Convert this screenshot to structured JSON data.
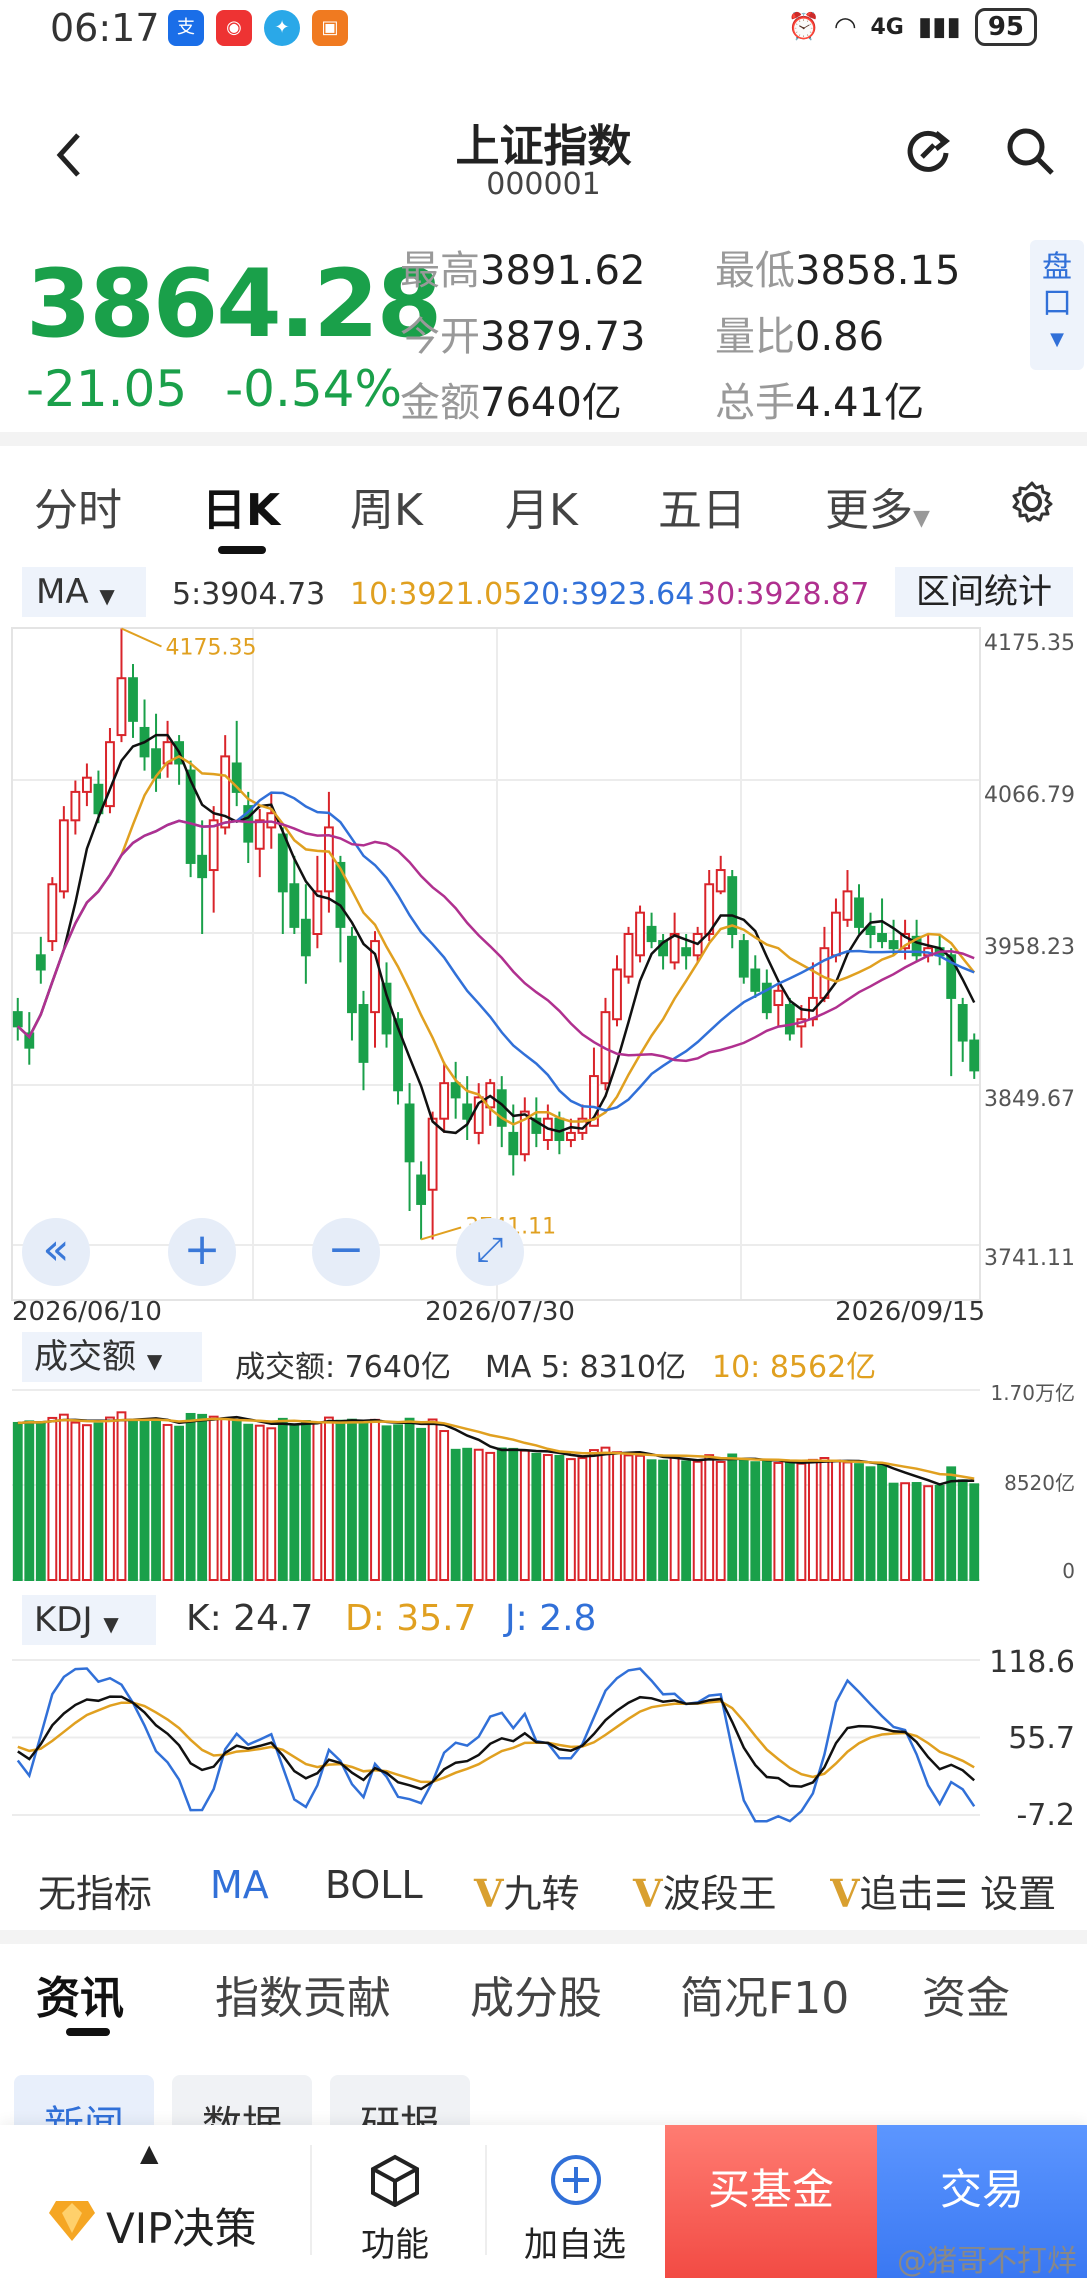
{
  "status": {
    "time": "06:17",
    "battery": "95",
    "network": "4G"
  },
  "header": {
    "title": "上证指数",
    "code": "000001"
  },
  "quote": {
    "price": "3864.28",
    "change": "-21.05",
    "change_pct": "-0.54%",
    "high_label": "最高",
    "high": "3891.62",
    "low_label": "最低",
    "low": "3858.15",
    "open_label": "今开",
    "open": "3879.73",
    "vol_ratio_label": "量比",
    "vol_ratio": "0.86",
    "amount_label": "金额",
    "amount": "7640亿",
    "turnover_label": "总手",
    "turnover": "4.41亿",
    "pankou": "盘口"
  },
  "tabs": [
    "分时",
    "日K",
    "周K",
    "月K",
    "五日",
    "更多"
  ],
  "ma_bar": {
    "button": "MA",
    "ma5": "5:3904.73",
    "ma10": "10:3921.05",
    "ma20": "20:3923.64",
    "ma30": "30:3928.87",
    "range_stat": "区间统计"
  },
  "colors": {
    "up": "#d9242a",
    "down": "#1aa04a",
    "ma5": "#111111",
    "ma10": "#e0a020",
    "ma20": "#3170d8",
    "ma30": "#b0308f"
  },
  "kline_axis": {
    "y_labels": [
      "4175.35",
      "4066.79",
      "3958.23",
      "3849.67",
      "3741.11"
    ],
    "x_labels": [
      "2026/06/10",
      "2026/07/30",
      "2026/09/15"
    ],
    "max_label": "4175.35",
    "min_label": "3741.11"
  },
  "volume_bar": {
    "button": "成交额",
    "amount": "成交额: 7640亿",
    "ma5": "MA 5: 8310亿",
    "ma10": "10: 8562亿",
    "y_labels": [
      "1.70万亿",
      "8520亿",
      "0"
    ]
  },
  "kdj_bar": {
    "button": "KDJ",
    "k": "K: 24.7",
    "d": "D: 35.7",
    "j": "J: 2.8",
    "y_labels": [
      "118.6",
      "55.7",
      "-7.2"
    ]
  },
  "indicator_row": {
    "none": "无指标",
    "ma": "MA",
    "boll": "BOLL",
    "v_mark": "V",
    "jiuzhuan": "九转",
    "boduan": "波段王",
    "zhui": "追击",
    "settings": "设置"
  },
  "info_tabs": [
    "资讯",
    "指数贡献",
    "成分股",
    "简况F10",
    "资金"
  ],
  "chips": [
    "新闻",
    "数据",
    "研报"
  ],
  "bottom": {
    "vip": "VIP决策",
    "func": "功能",
    "add": "加自选",
    "buy_fund": "买基金",
    "trade": "交易",
    "watermark": "@猪哥不打烊"
  },
  "chart_data": {
    "type": "candlestick",
    "period": "daily",
    "ylim": [
      3741.11,
      4175.35
    ],
    "candles": [
      [
        3905,
        3895,
        3915,
        3885
      ],
      [
        3890,
        3880,
        3905,
        3868
      ],
      [
        3945,
        3935,
        3958,
        3925
      ],
      [
        3955,
        3995,
        4000,
        3948
      ],
      [
        3990,
        4040,
        4050,
        3985
      ],
      [
        4040,
        4060,
        4068,
        4030
      ],
      [
        4060,
        4070,
        4080,
        4050
      ],
      [
        4065,
        4045,
        4075,
        4038
      ],
      [
        4050,
        4095,
        4105,
        4045
      ],
      [
        4100,
        4140,
        4175,
        4095
      ],
      [
        4140,
        4110,
        4150,
        4098
      ],
      [
        4105,
        4085,
        4125,
        4075
      ],
      [
        4090,
        4070,
        4115,
        4060
      ],
      [
        4080,
        4095,
        4110,
        4070
      ],
      [
        4095,
        4080,
        4100,
        4065
      ],
      [
        4075,
        4010,
        4082,
        4000
      ],
      [
        4015,
        4000,
        4040,
        3960
      ],
      [
        4005,
        4040,
        4050,
        3975
      ],
      [
        4035,
        4085,
        4100,
        4030
      ],
      [
        4080,
        4060,
        4110,
        4050
      ],
      [
        4050,
        4025,
        4060,
        4010
      ],
      [
        4020,
        4040,
        4048,
        4000
      ],
      [
        4035,
        4045,
        4060,
        4020
      ],
      [
        4030,
        3990,
        4035,
        3960
      ],
      [
        3995,
        3965,
        4015,
        3960
      ],
      [
        3970,
        3945,
        3995,
        3925
      ],
      [
        3960,
        3990,
        4015,
        3950
      ],
      [
        3990,
        4035,
        4060,
        3975
      ],
      [
        4010,
        3965,
        4015,
        3940
      ],
      [
        3958,
        3905,
        3965,
        3885
      ],
      [
        3910,
        3870,
        3920,
        3850
      ],
      [
        3905,
        3955,
        3962,
        3880
      ],
      [
        3925,
        3890,
        3940,
        3880
      ],
      [
        3900,
        3850,
        3905,
        3840
      ],
      [
        3840,
        3800,
        3855,
        3765
      ],
      [
        3790,
        3770,
        3800,
        3745
      ],
      [
        3780,
        3830,
        3835,
        3745
      ],
      [
        3830,
        3855,
        3870,
        3820
      ],
      [
        3855,
        3845,
        3870,
        3830
      ],
      [
        3840,
        3830,
        3860,
        3815
      ],
      [
        3820,
        3845,
        3855,
        3812
      ],
      [
        3838,
        3855,
        3858,
        3825
      ],
      [
        3850,
        3825,
        3860,
        3810
      ],
      [
        3820,
        3805,
        3840,
        3790
      ],
      [
        3805,
        3835,
        3845,
        3800
      ],
      [
        3830,
        3820,
        3845,
        3810
      ],
      [
        3815,
        3830,
        3840,
        3808
      ],
      [
        3830,
        3815,
        3835,
        3805
      ],
      [
        3815,
        3820,
        3830,
        3810
      ],
      [
        3820,
        3830,
        3840,
        3815
      ],
      [
        3825,
        3860,
        3880,
        3825
      ],
      [
        3855,
        3905,
        3915,
        3850
      ],
      [
        3900,
        3935,
        3945,
        3895
      ],
      [
        3930,
        3960,
        3965,
        3925
      ],
      [
        3945,
        3975,
        3980,
        3940
      ],
      [
        3965,
        3955,
        3975,
        3950
      ],
      [
        3955,
        3945,
        3960,
        3935
      ],
      [
        3940,
        3960,
        3975,
        3935
      ],
      [
        3950,
        3945,
        3960,
        3935
      ],
      [
        3945,
        3960,
        3965,
        3940
      ],
      [
        3960,
        3995,
        4005,
        3955
      ],
      [
        3990,
        4005,
        4015,
        3988
      ],
      [
        4000,
        3960,
        4005,
        3950
      ],
      [
        3955,
        3930,
        3960,
        3925
      ],
      [
        3935,
        3920,
        3945,
        3915
      ],
      [
        3925,
        3905,
        3935,
        3900
      ],
      [
        3910,
        3920,
        3925,
        3895
      ],
      [
        3910,
        3890,
        3915,
        3885
      ],
      [
        3895,
        3900,
        3910,
        3880
      ],
      [
        3900,
        3915,
        3940,
        3895
      ],
      [
        3915,
        3950,
        3965,
        3912
      ],
      [
        3945,
        3975,
        3985,
        3940
      ],
      [
        3970,
        3990,
        4005,
        3965
      ],
      [
        3985,
        3965,
        3995,
        3960
      ],
      [
        3965,
        3960,
        3975,
        3950
      ],
      [
        3960,
        3955,
        3985,
        3950
      ],
      [
        3955,
        3950,
        3970,
        3945
      ],
      [
        3950,
        3960,
        3970,
        3942
      ],
      [
        3958,
        3945,
        3970,
        3940
      ],
      [
        3945,
        3950,
        3960,
        3940
      ],
      [
        3950,
        3945,
        3960,
        3938
      ],
      [
        3945,
        3915,
        3950,
        3860
      ],
      [
        3910,
        3885,
        3915,
        3870
      ],
      [
        3885,
        3864,
        3890,
        3858
      ]
    ],
    "volume_ylim": [
      0,
      17000
    ],
    "kdj_ylim": [
      -7.2,
      118.6
    ]
  }
}
